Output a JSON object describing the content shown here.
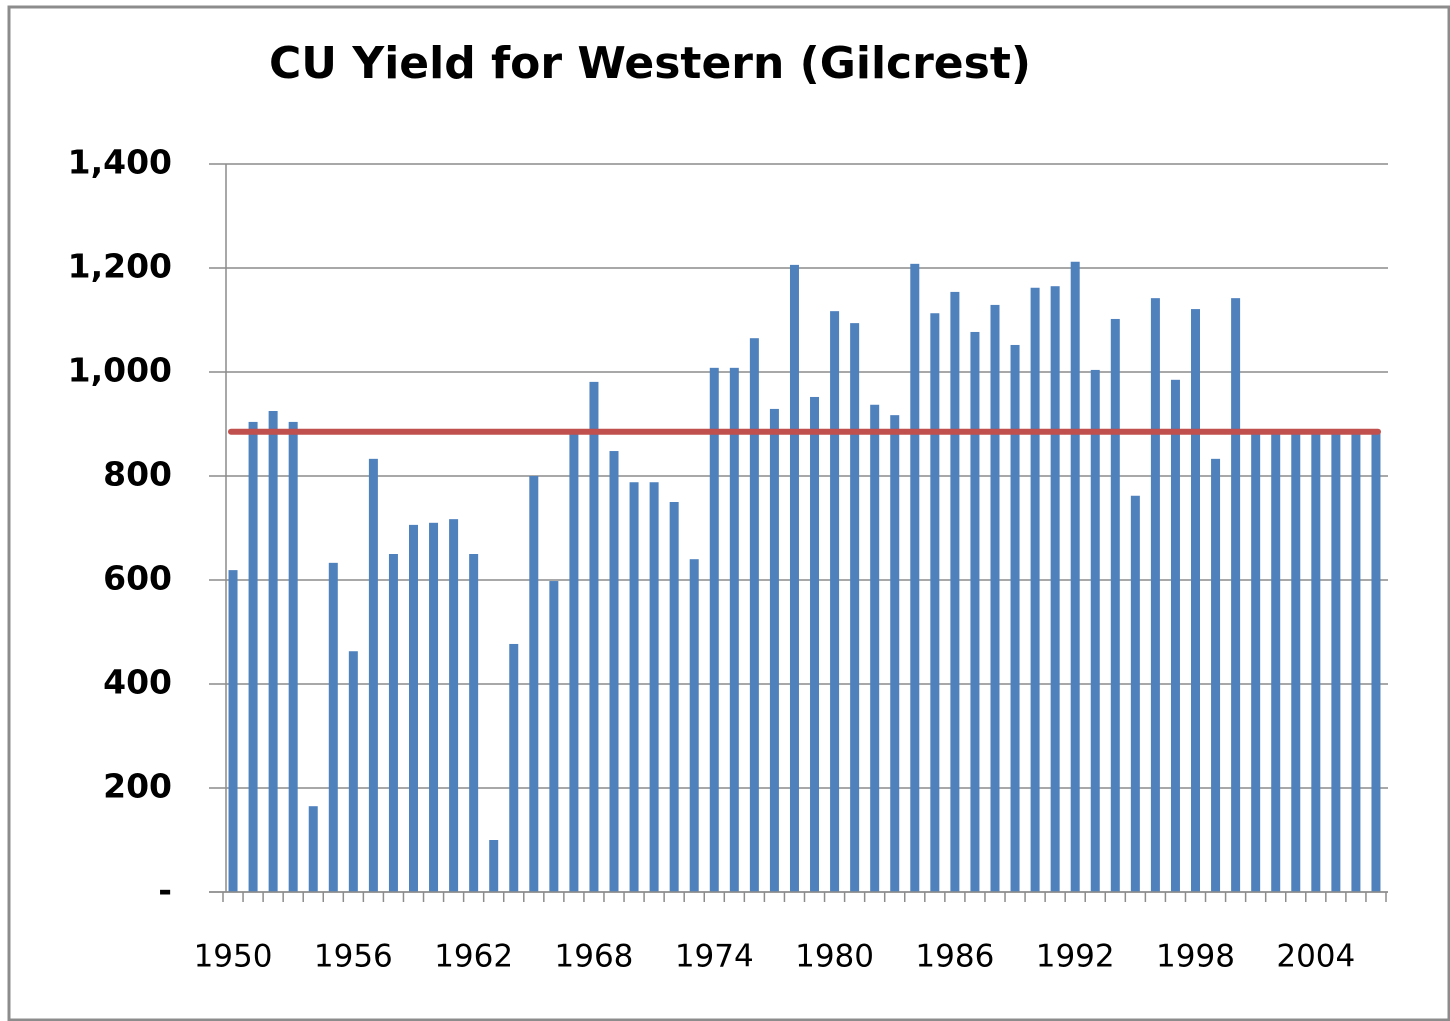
{
  "chart_data": {
    "type": "bar",
    "title": "CU Yield for Western (Gilcrest)",
    "categories": [
      "1950",
      null,
      null,
      null,
      null,
      null,
      "1956",
      null,
      null,
      null,
      null,
      null,
      "1962",
      null,
      null,
      null,
      null,
      null,
      "1968",
      null,
      null,
      null,
      null,
      null,
      "1974",
      null,
      null,
      null,
      null,
      null,
      "1980",
      null,
      null,
      null,
      null,
      null,
      "1986",
      null,
      null,
      null,
      null,
      null,
      "1992",
      null,
      null,
      null,
      null,
      null,
      "1998",
      null,
      null,
      null,
      null,
      null,
      "2004",
      null,
      null,
      null
    ],
    "values": [
      619,
      904,
      925,
      904,
      165,
      633,
      463,
      833,
      650,
      706,
      710,
      717,
      650,
      100,
      477,
      800,
      598,
      887,
      981,
      848,
      788,
      788,
      750,
      640,
      1008,
      1008,
      1065,
      929,
      1206,
      952,
      1117,
      1094,
      937,
      917,
      1208,
      1113,
      1154,
      1077,
      1129,
      1052,
      1162,
      1165,
      1212,
      1004,
      1102,
      762,
      1142,
      985,
      1121,
      833,
      1142,
      883,
      883,
      883,
      883,
      883,
      883,
      883
    ],
    "color": "#4f81bd",
    "reference_line": {
      "value": 885,
      "color": "#c0504d"
    },
    "ylim": [
      0,
      1400
    ],
    "yticks": [
      {
        "value": 0,
        "label": "-"
      },
      200,
      400,
      600,
      800,
      {
        "value": 1000,
        "label": "1,000"
      },
      {
        "value": 1200,
        "label": "1,200"
      },
      {
        "value": 1400,
        "label": "1,400"
      }
    ],
    "grid": true
  }
}
